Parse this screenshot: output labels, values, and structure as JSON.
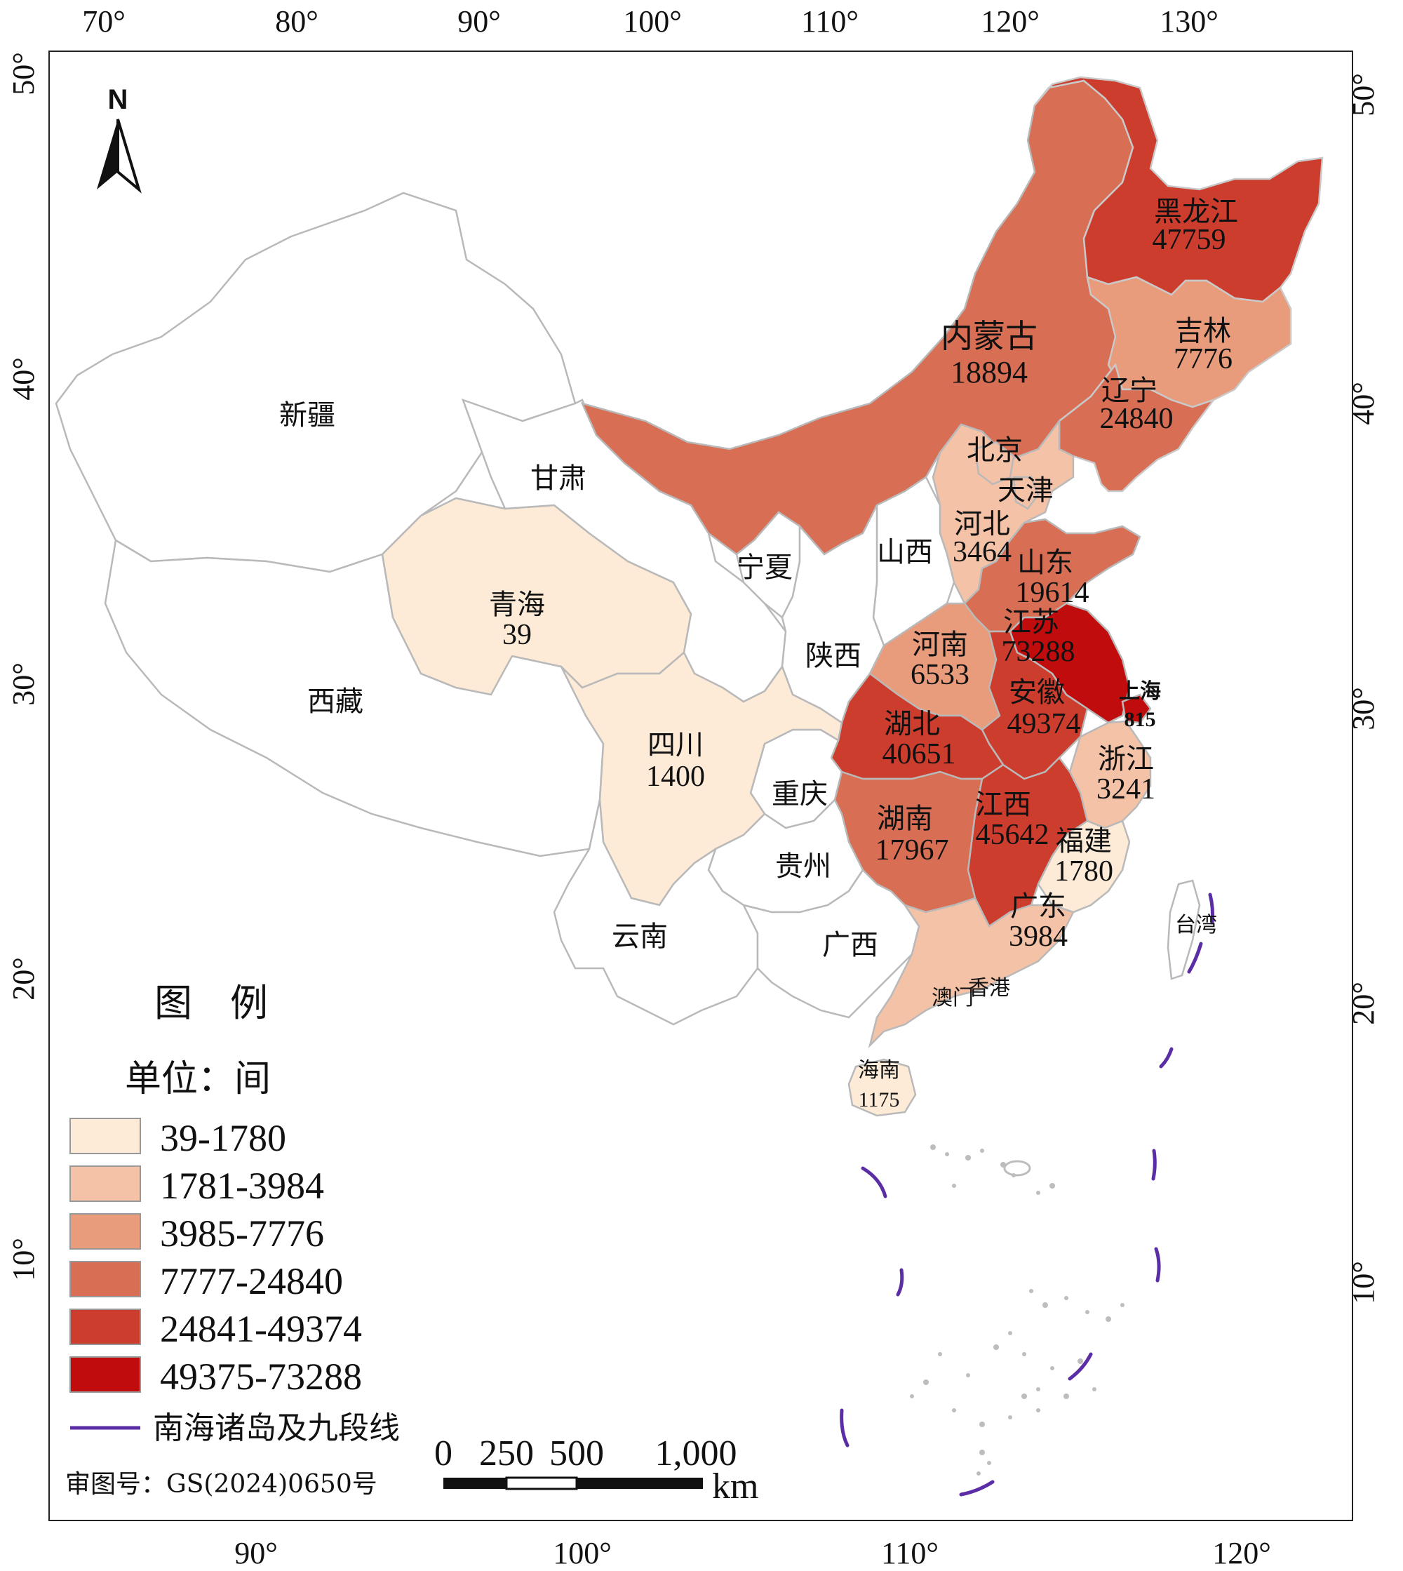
{
  "colors": {
    "class1": "#fdebd8",
    "class2": "#f4c2a7",
    "class3": "#e89c7c",
    "class4": "#d86e54",
    "class5": "#cc3d2e",
    "class6": "#c00c0c",
    "nodata": "#ffffff",
    "border": "#b9b9b9",
    "nine_dash_line": "#5b2ea6"
  },
  "north_arrow": {
    "label": "N"
  },
  "top_ticks": [
    "70°",
    "80°",
    "90°",
    "100°",
    "110°",
    "120°",
    "130°"
  ],
  "bottom_ticks": [
    "90°",
    "100°",
    "110°",
    "120°"
  ],
  "left_ticks": [
    "50°",
    "40°",
    "30°",
    "20°",
    "10°"
  ],
  "right_ticks": [
    "50°",
    "40°",
    "30°",
    "20°",
    "10°"
  ],
  "provinces": {
    "heilongjiang": {
      "name": "黑龙江",
      "value": "47759"
    },
    "jilin": {
      "name": "吉林",
      "value": "7776"
    },
    "liaoning": {
      "name": "辽宁",
      "value": "24840"
    },
    "neimenggu": {
      "name": "内蒙古",
      "value": "18894"
    },
    "beijing": {
      "name": "北京"
    },
    "tianjin": {
      "name": "天津"
    },
    "hebei": {
      "name": "河北",
      "value": "3464"
    },
    "shanxi": {
      "name": "山西"
    },
    "shandong": {
      "name": "山东",
      "value": "19614"
    },
    "jiangsu": {
      "name": "江苏",
      "value": "73288"
    },
    "shanghai": {
      "name": "上海",
      "value": "815"
    },
    "henan": {
      "name": "河南",
      "value": "6533"
    },
    "anhui": {
      "name": "安徽",
      "value": "49374"
    },
    "zhejiang": {
      "name": "浙江",
      "value": "3241"
    },
    "hubei": {
      "name": "湖北",
      "value": "40651"
    },
    "jiangxi": {
      "name": "江西",
      "value": "45642"
    },
    "fujian": {
      "name": "福建",
      "value": "1780"
    },
    "hunan": {
      "name": "湖南",
      "value": "17967"
    },
    "guangdong": {
      "name": "广东",
      "value": "3984"
    },
    "guangxi": {
      "name": "广西"
    },
    "hainan": {
      "name": "海南",
      "value": "1175"
    },
    "xianggang": {
      "name": "香港"
    },
    "aomen": {
      "name": "澳门"
    },
    "taiwan": {
      "name": "台湾"
    },
    "xinjiang": {
      "name": "新疆"
    },
    "xizang": {
      "name": "西藏"
    },
    "qinghai": {
      "name": "青海",
      "value": "39"
    },
    "gansu": {
      "name": "甘肃"
    },
    "ningxia": {
      "name": "宁夏"
    },
    "shaanxi": {
      "name": "陕西"
    },
    "sichuan": {
      "name": "四川",
      "value": "1400"
    },
    "chongqing": {
      "name": "重庆"
    },
    "guizhou": {
      "name": "贵州"
    },
    "yunnan": {
      "name": "云南"
    }
  },
  "legend": {
    "title": "图　例",
    "unit": "单位：间",
    "classes": [
      "39-1780",
      "1781-3984",
      "3985-7776",
      "7777-24840",
      "24841-49374",
      "49375-73288"
    ],
    "line_label": "南海诸岛及九段线"
  },
  "scale_bar": {
    "labels": [
      "0",
      "250",
      "500",
      "1,000"
    ],
    "unit": "km"
  },
  "approval_number": "审图号：GS(2024)0650号"
}
